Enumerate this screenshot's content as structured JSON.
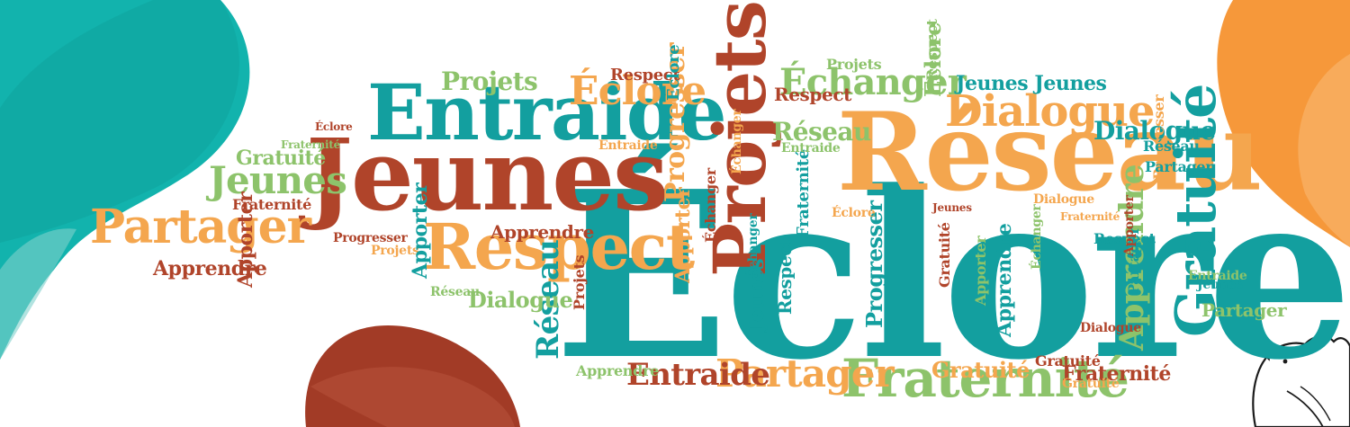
{
  "colors": {
    "teal": "#139f9f",
    "rust": "#b0442a",
    "orange": "#f4a64e",
    "green": "#8dc36b",
    "blob_teal": "#12b3ad",
    "blob_orange": "#f6983a",
    "blob_brown": "#a23b26"
  },
  "words": [
    {
      "text": "Éclore",
      "c": "teal"
    },
    {
      "text": "Réseau",
      "c": "orange"
    },
    {
      "text": "Jeunes",
      "c": "rust"
    },
    {
      "text": "Entraide",
      "c": "teal"
    },
    {
      "text": "Projets",
      "c": "rust"
    },
    {
      "text": "Respect",
      "c": "orange"
    },
    {
      "text": "Gratuité",
      "c": "teal"
    },
    {
      "text": "Fraternité",
      "c": "green"
    },
    {
      "text": "Dialogue",
      "c": "orange"
    },
    {
      "text": "Échanger",
      "c": "green"
    },
    {
      "text": "Éclore",
      "c": "orange"
    },
    {
      "text": "Partager",
      "c": "orange"
    },
    {
      "text": "Partager",
      "c": "orange"
    },
    {
      "text": "Entraide",
      "c": "rust"
    },
    {
      "text": "Apprendre",
      "c": "rust"
    },
    {
      "text": "Apprendre",
      "c": "green"
    },
    {
      "text": "Jeunes",
      "c": "green"
    },
    {
      "text": "Gratuité",
      "c": "green"
    },
    {
      "text": "Fraternité",
      "c": "rust"
    },
    {
      "text": "Progresser",
      "c": "orange"
    },
    {
      "text": "Dialogue",
      "c": "teal"
    },
    {
      "text": "Réseau",
      "c": "green"
    },
    {
      "text": "Réseau",
      "c": "teal"
    },
    {
      "text": "Projets",
      "c": "green"
    },
    {
      "text": "Projets",
      "c": "green"
    },
    {
      "text": "Jeunes Jeunes",
      "c": "teal"
    },
    {
      "text": "Dialogue",
      "c": "green"
    },
    {
      "text": "Gratuité",
      "c": "orange"
    },
    {
      "text": "Fraternité",
      "c": "rust"
    },
    {
      "text": "Respect",
      "c": "rust"
    },
    {
      "text": "Respect",
      "c": "green"
    },
    {
      "text": "Apporter",
      "c": "rust"
    },
    {
      "text": "Apporter",
      "c": "orange"
    },
    {
      "text": "Éclore",
      "c": "green"
    },
    {
      "text": "Éclore",
      "c": "teal"
    },
    {
      "text": "Éclore",
      "c": "rust"
    },
    {
      "text": "Progresser",
      "c": "teal"
    },
    {
      "text": "Apprendre",
      "c": "green"
    },
    {
      "text": "Échanger",
      "c": "rust"
    },
    {
      "text": "Partager",
      "c": "green"
    },
    {
      "text": "Fraternité",
      "c": "green"
    },
    {
      "text": "Gratuité",
      "c": "rust"
    },
    {
      "text": "Entraide",
      "c": "green"
    },
    {
      "text": "Projets",
      "c": "orange"
    },
    {
      "text": "Échanger",
      "c": "teal"
    },
    {
      "text": "Respect",
      "c": "rust"
    },
    {
      "text": "Jeunes",
      "c": "teal"
    },
    {
      "text": "Apprendre",
      "c": "rust"
    },
    {
      "text": "Progresser",
      "c": "orange"
    },
    {
      "text": "Entraide",
      "c": "orange"
    },
    {
      "text": "Apporter",
      "c": "teal"
    },
    {
      "text": "Fraternité",
      "c": "teal"
    },
    {
      "text": "Dialogue",
      "c": "orange"
    },
    {
      "text": "Respect",
      "c": "teal"
    },
    {
      "text": "Partager",
      "c": "teal"
    },
    {
      "text": "Projets",
      "c": "rust"
    },
    {
      "text": "Éclore",
      "c": "orange"
    },
    {
      "text": "Échanger",
      "c": "green"
    },
    {
      "text": "Réseau",
      "c": "green"
    },
    {
      "text": "Apprendre",
      "c": "teal"
    },
    {
      "text": "Jeunes",
      "c": "rust"
    },
    {
      "text": "Apporter",
      "c": "green"
    },
    {
      "text": "Fraternité",
      "c": "orange"
    },
    {
      "text": "Gratuité",
      "c": "rust"
    },
    {
      "text": "Dialogue",
      "c": "rust"
    },
    {
      "text": "Réseau",
      "c": "teal"
    },
    {
      "text": "Respect",
      "c": "teal"
    },
    {
      "text": "Partager",
      "c": "teal"
    },
    {
      "text": "Entraide",
      "c": "green"
    },
    {
      "text": "Progresser",
      "c": "rust"
    },
    {
      "text": "Échanger",
      "c": "orange"
    },
    {
      "text": "Jeunes",
      "c": "teal"
    },
    {
      "text": "Apporter",
      "c": "rust"
    },
    {
      "text": "Gratuité",
      "c": "orange"
    }
  ]
}
